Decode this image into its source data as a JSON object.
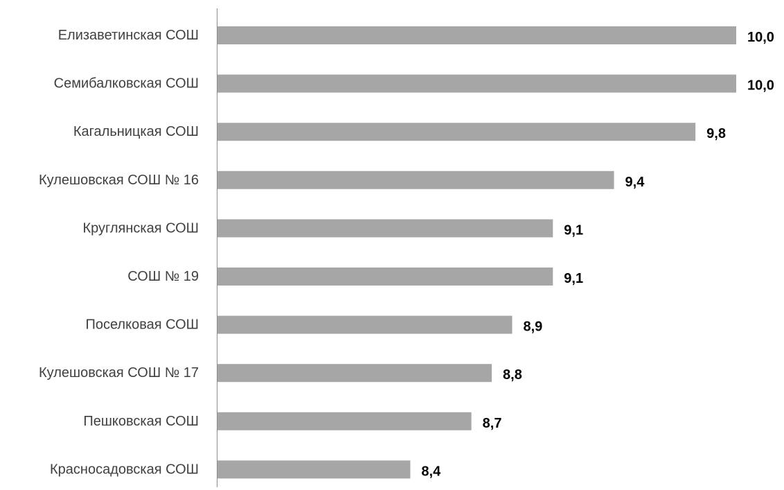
{
  "chart_data": {
    "type": "bar",
    "orientation": "horizontal",
    "title": "",
    "xlabel": "",
    "ylabel": "",
    "categories": [
      "Елизаветинская СОШ",
      "Семибалковская СОШ",
      "Кагальницкая СОШ",
      "Кулешовская СОШ № 16",
      "Круглянская СОШ",
      "СОШ № 19",
      "Поселковая СОШ",
      "Кулешовская СОШ № 17",
      "Пешковская СОШ",
      "Красносадовская СОШ"
    ],
    "values": [
      10.0,
      10.0,
      9.8,
      9.4,
      9.1,
      9.1,
      8.9,
      8.8,
      8.7,
      8.4
    ],
    "value_labels": [
      "10,0",
      "10,0",
      "9,8",
      "9,4",
      "9,1",
      "9,1",
      "8,9",
      "8,8",
      "8,7",
      "8,4"
    ],
    "xlim": [
      7.45,
      10.0
    ],
    "grid": false,
    "legend": "none",
    "bar_color": "#a6a6a6",
    "label_color": "#404040",
    "value_label_color": "#000000"
  }
}
